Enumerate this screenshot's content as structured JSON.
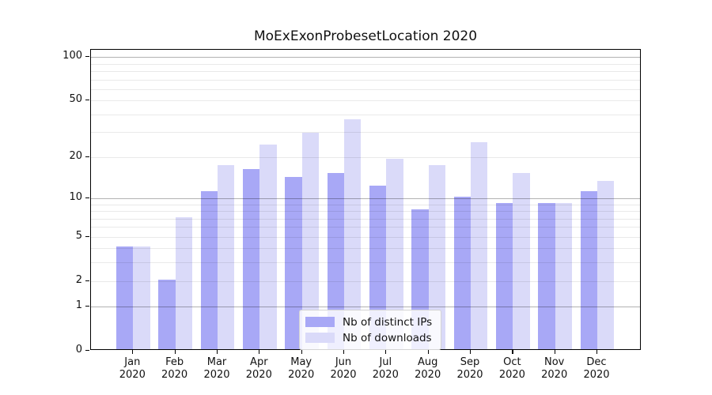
{
  "title": "MoExExonProbesetLocation 2020",
  "legend": {
    "items": [
      {
        "label": "Nb of distinct IPs",
        "color": "#a8a8f6"
      },
      {
        "label": "Nb of downloads",
        "color": "#dadaf9"
      }
    ]
  },
  "chart_data": {
    "type": "bar",
    "title": "MoExExonProbesetLocation 2020",
    "months": [
      "Jan",
      "Feb",
      "Mar",
      "Apr",
      "May",
      "Jun",
      "Jul",
      "Aug",
      "Sep",
      "Oct",
      "Nov",
      "Dec"
    ],
    "year_label": "2020",
    "series": [
      {
        "name": "Nb of distinct IPs",
        "color": "#a8a8f6",
        "values": [
          4,
          2,
          11,
          16,
          14,
          15,
          12,
          8,
          10,
          9,
          9,
          11
        ]
      },
      {
        "name": "Nb of downloads",
        "color": "#dadaf9",
        "values": [
          4,
          7,
          17,
          24,
          29,
          36,
          19,
          17,
          25,
          15,
          9,
          13
        ]
      }
    ],
    "xlabel": "",
    "ylabel": "",
    "yscale": "log1p",
    "ylim": [
      0,
      112
    ],
    "yticks": [
      0,
      1,
      2,
      5,
      10,
      20,
      50,
      100
    ],
    "major_gridlines": [
      1,
      10,
      100
    ],
    "minor_gridlines": [
      2,
      3,
      4,
      5,
      6,
      7,
      8,
      9,
      20,
      30,
      40,
      50,
      60,
      70,
      80,
      90
    ],
    "grid": "horizontal, drawn above bars",
    "legend_position": "lower center inside plot",
    "axis_color": "#000000",
    "major_grid_color": "#b0b0b0",
    "minor_grid_color": "#e8e8e8"
  }
}
